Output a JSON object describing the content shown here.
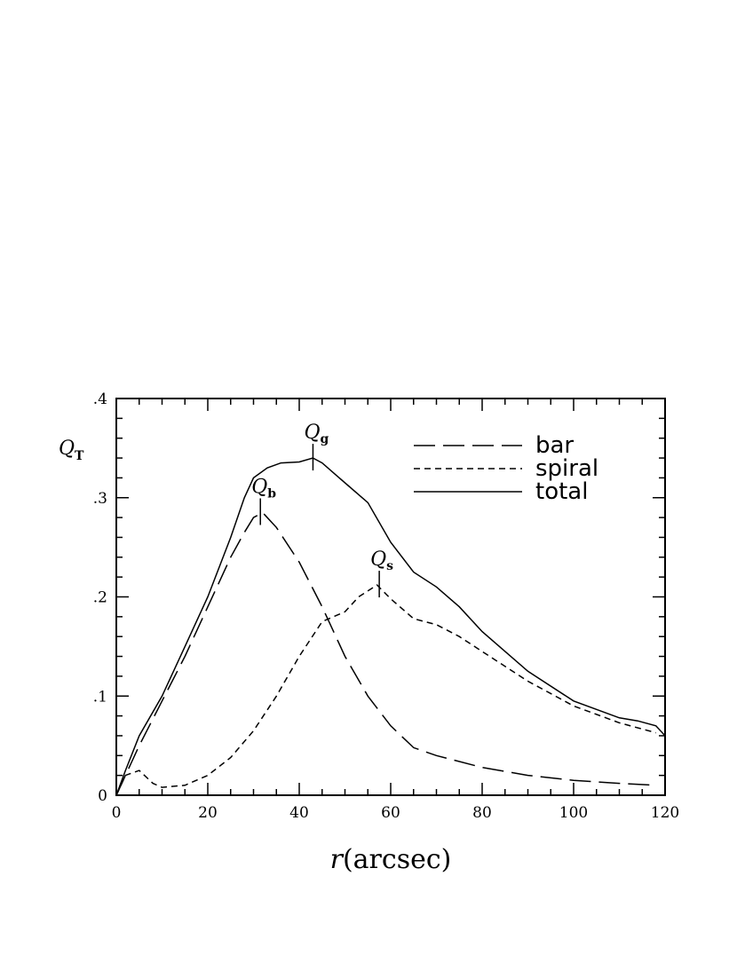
{
  "chart_data": {
    "type": "line",
    "title": "",
    "xlabel_var": "r",
    "xlabel_unit": "(arcsec)",
    "ylabel_main": "Q",
    "ylabel_sub": "T",
    "xlim": [
      0,
      120
    ],
    "ylim": [
      0,
      0.4
    ],
    "x_ticks": [
      0,
      20,
      40,
      60,
      80,
      100,
      120
    ],
    "x_tick_labels": [
      "0",
      "20",
      "40",
      "60",
      "80",
      "100",
      "120"
    ],
    "y_ticks": [
      0,
      0.1,
      0.2,
      0.3,
      0.4
    ],
    "y_tick_labels": [
      "0",
      ".1",
      ".2",
      ".3",
      ".4"
    ],
    "grid": false,
    "legend_position": "top-right",
    "series": [
      {
        "name": "bar",
        "style": "long-dash",
        "x": [
          0,
          2,
          5,
          10,
          15,
          20,
          25,
          28,
          30,
          32,
          35,
          40,
          45,
          50,
          55,
          60,
          65,
          70,
          80,
          90,
          100,
          110,
          118
        ],
        "y": [
          0.0,
          0.02,
          0.05,
          0.095,
          0.14,
          0.19,
          0.24,
          0.265,
          0.28,
          0.285,
          0.27,
          0.235,
          0.19,
          0.14,
          0.1,
          0.07,
          0.048,
          0.04,
          0.028,
          0.02,
          0.015,
          0.012,
          0.01
        ]
      },
      {
        "name": "spiral",
        "style": "short-dash",
        "x": [
          0,
          2,
          5,
          8,
          10,
          15,
          20,
          25,
          30,
          35,
          40,
          45,
          50,
          53,
          57,
          60,
          65,
          70,
          75,
          80,
          90,
          100,
          110,
          118
        ],
        "y": [
          0.0,
          0.02,
          0.025,
          0.012,
          0.008,
          0.01,
          0.02,
          0.038,
          0.065,
          0.1,
          0.14,
          0.175,
          0.185,
          0.2,
          0.212,
          0.198,
          0.178,
          0.172,
          0.16,
          0.145,
          0.115,
          0.09,
          0.073,
          0.063
        ]
      },
      {
        "name": "total",
        "style": "solid",
        "x": [
          0,
          2,
          5,
          10,
          15,
          20,
          25,
          28,
          30,
          33,
          36,
          40,
          43,
          45,
          50,
          55,
          60,
          65,
          70,
          75,
          80,
          90,
          100,
          110,
          114,
          118,
          120
        ],
        "y": [
          0.0,
          0.025,
          0.06,
          0.1,
          0.15,
          0.2,
          0.26,
          0.3,
          0.32,
          0.33,
          0.335,
          0.336,
          0.34,
          0.335,
          0.315,
          0.295,
          0.255,
          0.225,
          0.21,
          0.19,
          0.165,
          0.125,
          0.095,
          0.078,
          0.075,
          0.07,
          0.06
        ]
      }
    ],
    "annotations": [
      {
        "main": "Q",
        "sub": "b",
        "x": 31.5,
        "y": 0.285
      },
      {
        "main": "Q",
        "sub": "g",
        "x": 43,
        "y": 0.34
      },
      {
        "main": "Q",
        "sub": "s",
        "x": 57.5,
        "y": 0.212
      }
    ]
  }
}
